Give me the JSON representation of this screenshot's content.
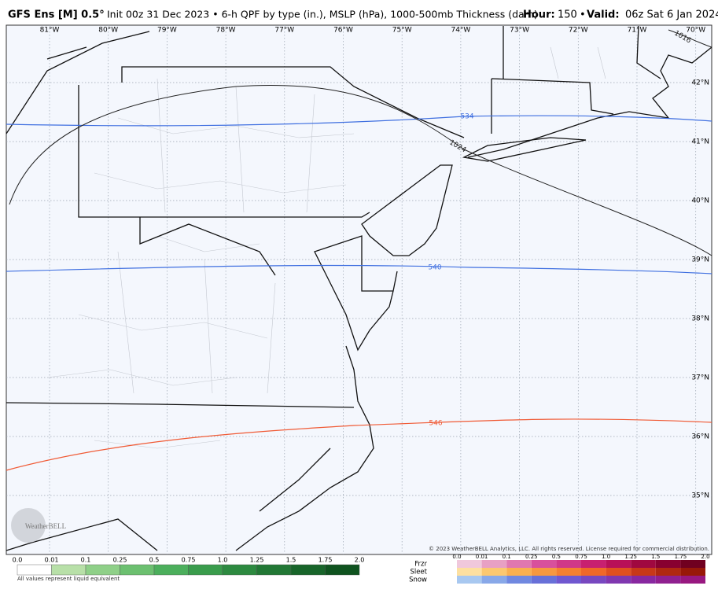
{
  "header": {
    "model": "GFS Ens [M] 0.5°",
    "description": "Init 00z 31 Dec 2023 • 6-h QPF by type (in.), MSLP (hPa), 1000-500mb Thickness (dam)",
    "hour_label": "Hour:",
    "hour": "150",
    "valid_label": "Valid:",
    "valid": "06z Sat 6 Jan 2024"
  },
  "map": {
    "longitudes": [
      "81°W",
      "80°W",
      "79°W",
      "78°W",
      "77°W",
      "76°W",
      "75°W",
      "74°W",
      "73°W",
      "72°W",
      "71°W",
      "70°W"
    ],
    "latitudes": [
      "42°N",
      "41°N",
      "40°N",
      "39°N",
      "38°N",
      "37°N",
      "36°N",
      "35°N"
    ],
    "contours": {
      "thickness_534": "534",
      "thickness_540": "540",
      "thickness_546": "546",
      "pressure_1024": "1024",
      "pressure_1016": "1016"
    },
    "copyright": "© 2023 WeatherBELL Analytics, LLC. All rights reserved. License required for commercial distribution.",
    "logo": "WeatherBELL"
  },
  "legend": {
    "rain_scale": [
      "0.0",
      "0.01",
      "0.1",
      "0.25",
      "0.5",
      "0.75",
      "1.0",
      "1.25",
      "1.5",
      "1.75",
      "2.0"
    ],
    "note": "All values represent liquid equivalent",
    "types": [
      "Frzr",
      "Sleet",
      "Snow"
    ],
    "type_scale": [
      "0.0",
      "0.01",
      "0.1",
      "0.25",
      "0.5",
      "0.75",
      "1.0",
      "1.25",
      "1.5",
      "1.75",
      "2.0"
    ]
  }
}
